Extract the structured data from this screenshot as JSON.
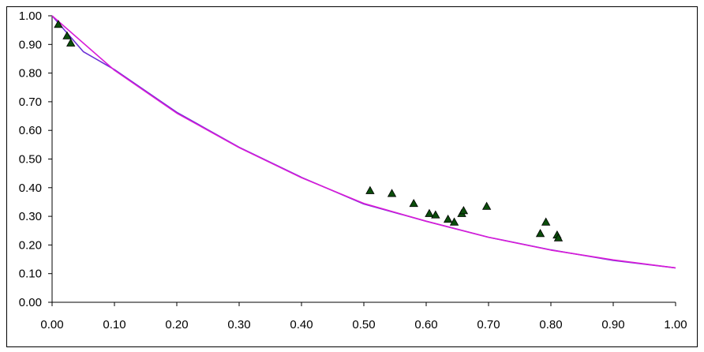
{
  "chart_data": {
    "type": "scatter",
    "title": "",
    "xlabel": "",
    "ylabel": "",
    "xlim": [
      0,
      1
    ],
    "ylim": [
      0,
      1
    ],
    "x_ticks": [
      "0.00",
      "0.10",
      "0.20",
      "0.30",
      "0.40",
      "0.50",
      "0.60",
      "0.70",
      "0.80",
      "0.90",
      "1.00"
    ],
    "y_ticks": [
      "0.00",
      "0.10",
      "0.20",
      "0.30",
      "0.40",
      "0.50",
      "0.60",
      "0.70",
      "0.80",
      "0.90",
      "1.00"
    ],
    "grid": false,
    "legend": "none",
    "series": [
      {
        "kind": "scatter",
        "marker": "triangle",
        "color": "#0b4d0b",
        "points": [
          [
            0.01,
            0.97
          ],
          [
            0.024,
            0.93
          ],
          [
            0.03,
            0.905
          ],
          [
            0.51,
            0.39
          ],
          [
            0.545,
            0.38
          ],
          [
            0.58,
            0.345
          ],
          [
            0.605,
            0.31
          ],
          [
            0.615,
            0.305
          ],
          [
            0.635,
            0.29
          ],
          [
            0.645,
            0.28
          ],
          [
            0.657,
            0.31
          ],
          [
            0.66,
            0.32
          ],
          [
            0.697,
            0.335
          ],
          [
            0.783,
            0.24
          ],
          [
            0.792,
            0.28
          ],
          [
            0.81,
            0.235
          ],
          [
            0.812,
            0.225
          ]
        ]
      },
      {
        "kind": "line",
        "color": "#6b2fd6",
        "points": [
          [
            0.0,
            1.0
          ],
          [
            0.05,
            0.875
          ],
          [
            0.1,
            0.812
          ],
          [
            0.2,
            0.663
          ],
          [
            0.3,
            0.541
          ],
          [
            0.4,
            0.436
          ],
          [
            0.5,
            0.343
          ],
          [
            0.6,
            0.283
          ],
          [
            0.7,
            0.227
          ],
          [
            0.8,
            0.183
          ],
          [
            0.9,
            0.146
          ],
          [
            0.95,
            0.133
          ],
          [
            1.0,
            0.12
          ]
        ]
      },
      {
        "kind": "line",
        "color": "#d81bd8",
        "points": [
          [
            0.0,
            1.0
          ],
          [
            0.1,
            0.81
          ],
          [
            0.2,
            0.66
          ],
          [
            0.3,
            0.54
          ],
          [
            0.4,
            0.435
          ],
          [
            0.5,
            0.345
          ],
          [
            0.6,
            0.283
          ],
          [
            0.7,
            0.227
          ],
          [
            0.8,
            0.182
          ],
          [
            0.9,
            0.148
          ],
          [
            1.0,
            0.12
          ]
        ]
      }
    ]
  }
}
